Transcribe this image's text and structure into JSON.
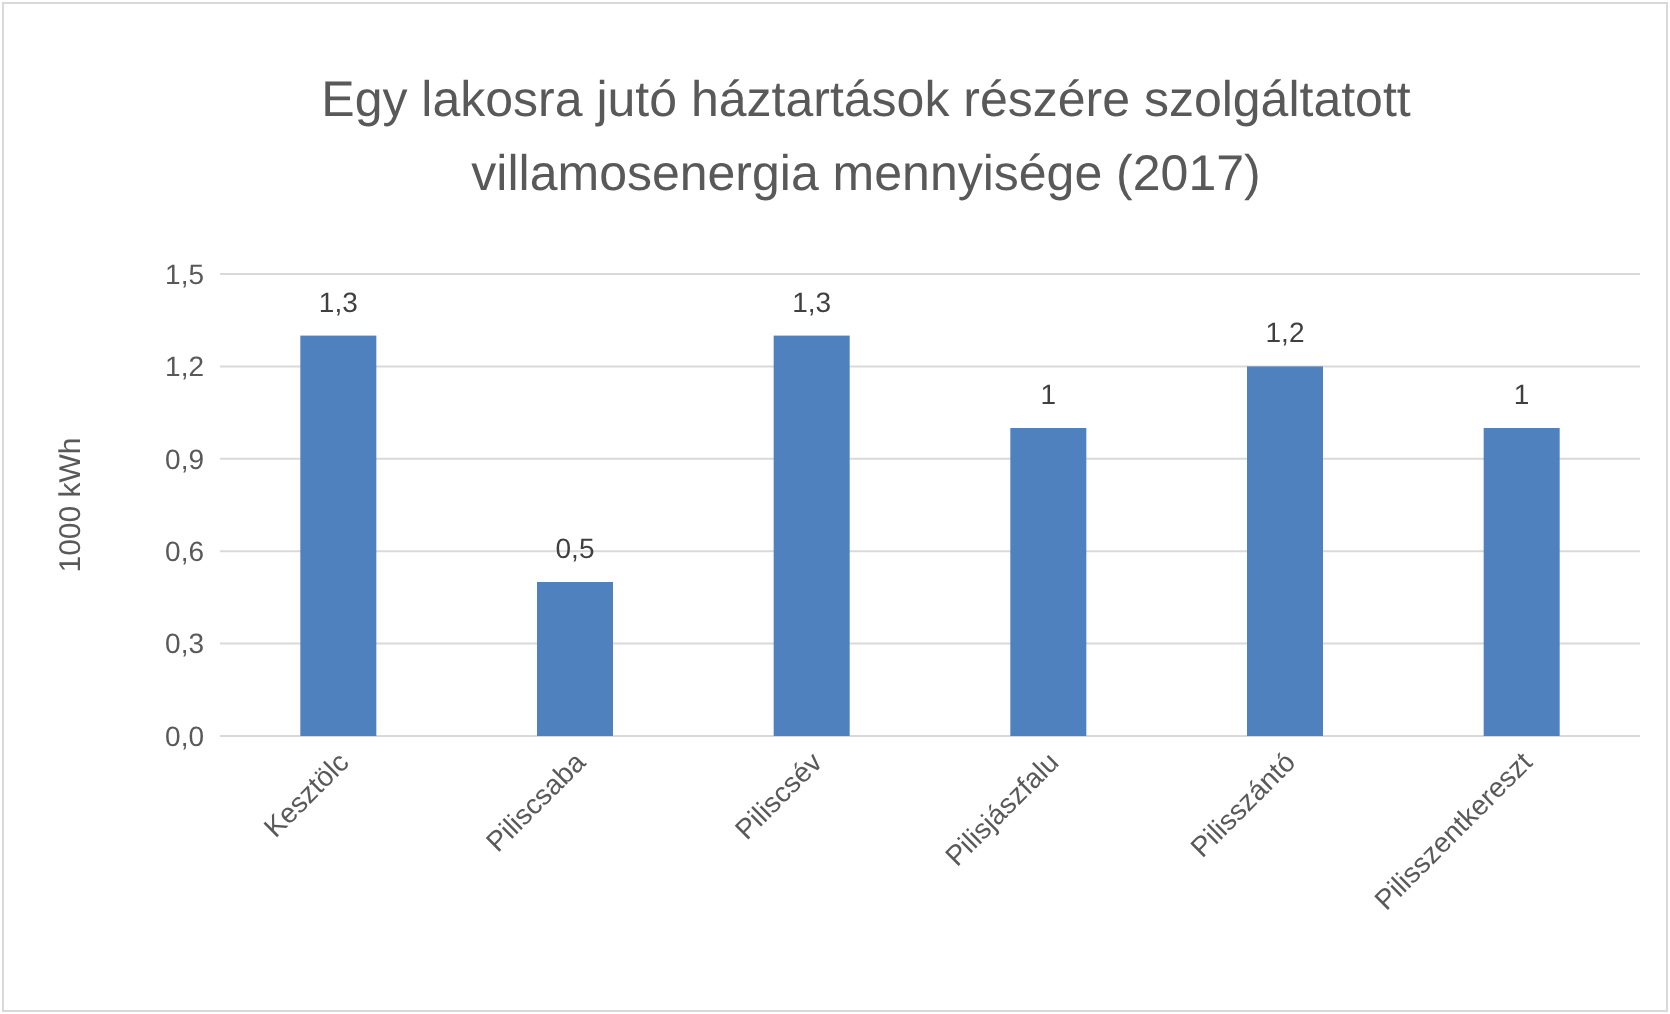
{
  "chart_data": {
    "type": "bar",
    "title": "Egy lakosra jutó háztartások részére szolgáltatott villamosenergia mennyisége (2017)",
    "ylabel": "1000 kWh",
    "categories": [
      "Kesztölc",
      "Piliscsaba",
      "Piliscsév",
      "Pilisjászfalu",
      "Pilisszántó",
      "Pilisszentkereszt"
    ],
    "values": [
      1.3,
      0.5,
      1.3,
      1,
      1.2,
      1
    ],
    "value_labels": [
      "1,3",
      "0,5",
      "1,3",
      "1",
      "1,2",
      "1"
    ],
    "color": "#4e81bd",
    "ylim": [
      0,
      1.5
    ],
    "yticks": [
      {
        "value": 0,
        "label": "0,0"
      },
      {
        "value": 0.3,
        "label": "0,3"
      },
      {
        "value": 0.6,
        "label": "0,6"
      },
      {
        "value": 0.9,
        "label": "0,9"
      },
      {
        "value": 1.2,
        "label": "1,2"
      },
      {
        "value": 1.5,
        "label": "1,5"
      }
    ],
    "grid": "y"
  }
}
